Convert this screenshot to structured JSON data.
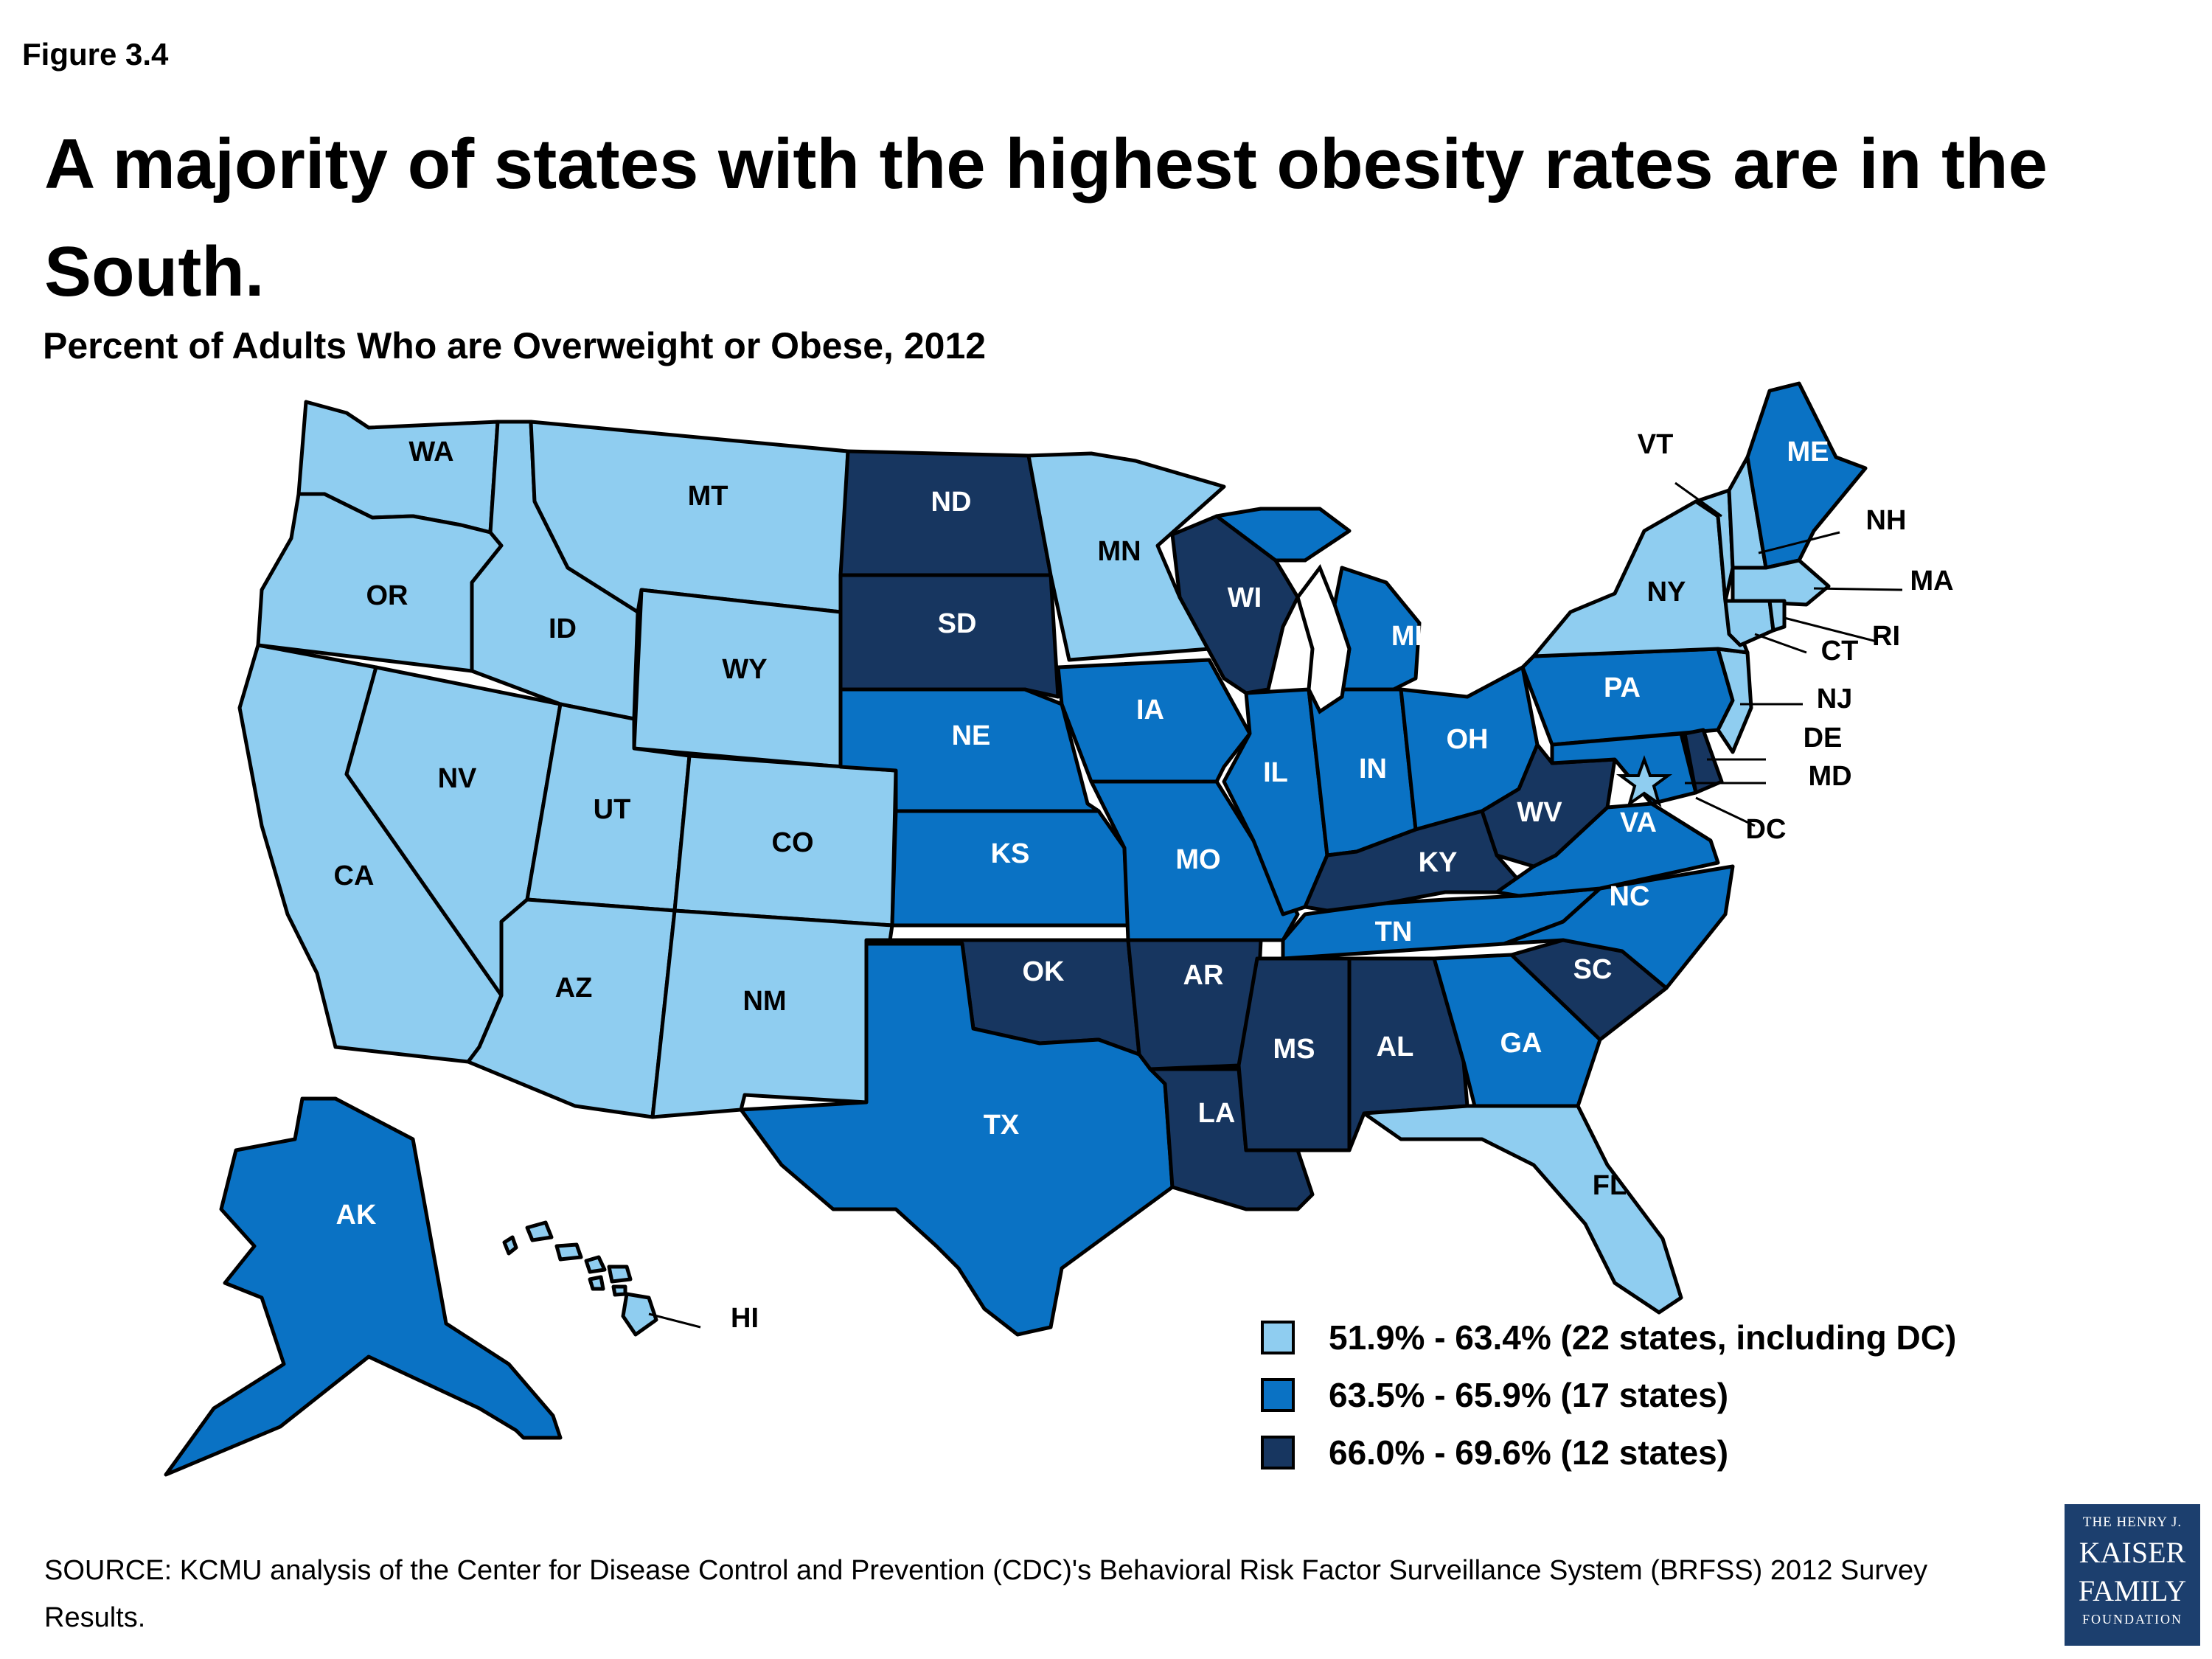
{
  "figure_label": "Figure 3.4",
  "title": "A majority of states with the highest obesity rates are in the South.",
  "subtitle": "Percent of Adults Who are Overweight or Obese, 2012",
  "colors": {
    "low": "#8fcdf0",
    "mid": "#0a72c4",
    "high": "#173660",
    "border": "#000000"
  },
  "legend": [
    {
      "label": "51.9% - 63.4% (22 states, including DC)",
      "class": "low"
    },
    {
      "label": "63.5% - 65.9% (17 states)",
      "class": "mid"
    },
    {
      "label": "66.0% - 69.6% (12 states)",
      "class": "high"
    }
  ],
  "states": {
    "WA": "low",
    "OR": "low",
    "CA": "low",
    "ID": "low",
    "NV": "low",
    "UT": "low",
    "AZ": "low",
    "MT": "low",
    "WY": "low",
    "CO": "low",
    "NM": "low",
    "ND": "high",
    "SD": "high",
    "NE": "mid",
    "KS": "mid",
    "OK": "high",
    "TX": "mid",
    "MN": "low",
    "IA": "mid",
    "MO": "mid",
    "AR": "high",
    "LA": "high",
    "WI": "high",
    "IL": "mid",
    "MI": "mid",
    "IN": "mid",
    "OH": "mid",
    "KY": "high",
    "TN": "mid",
    "MS": "high",
    "AL": "high",
    "GA": "mid",
    "FL": "low",
    "SC": "high",
    "NC": "mid",
    "VA": "mid",
    "WV": "high",
    "PA": "mid",
    "NY": "low",
    "VT": "low",
    "NH": "low",
    "ME": "mid",
    "MA": "low",
    "RI": "low",
    "CT": "low",
    "NJ": "low",
    "DE": "high",
    "MD": "mid",
    "DC": "low",
    "AK": "mid",
    "HI": "low"
  },
  "source": "SOURCE: KCMU analysis of the Center for Disease Control and Prevention (CDC)'s Behavioral Risk Factor Surveillance System (BRFSS) 2012 Survey Results.",
  "logo": {
    "line1": "THE HENRY J.",
    "line2a": "KAISER",
    "line2b": "FAMILY",
    "line3": "FOUNDATION"
  }
}
